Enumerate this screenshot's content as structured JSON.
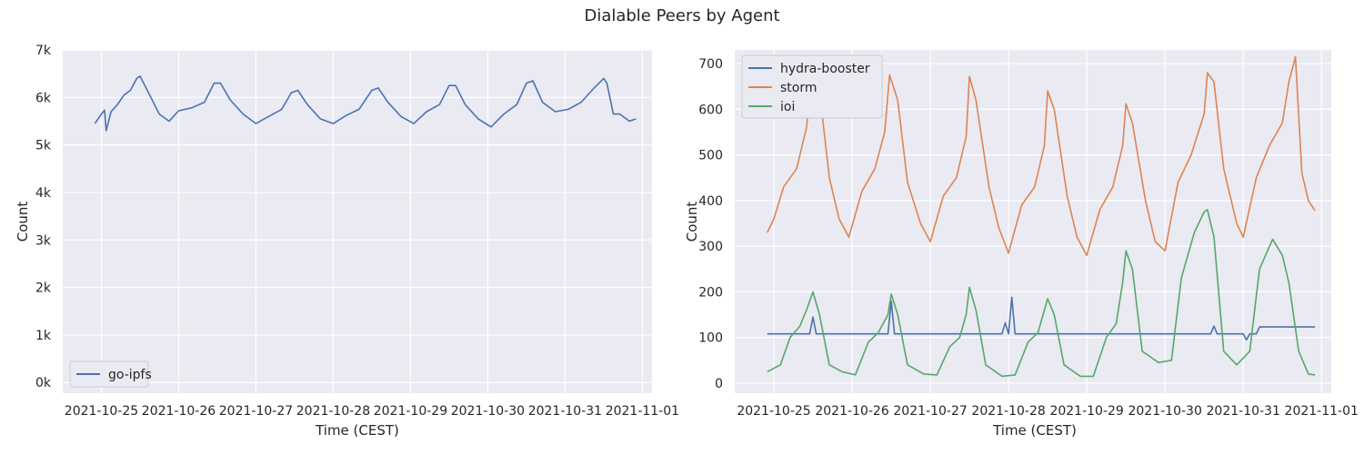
{
  "figure": {
    "title": "Dialable Peers by Agent"
  },
  "colors": {
    "go-ipfs": "#4c72b0",
    "hydra-booster": "#4c72b0",
    "storm": "#dd8452",
    "ioi": "#55a868",
    "axes_bg": "#eaeaf2",
    "grid": "#ffffff"
  },
  "chart_data": [
    {
      "type": "line",
      "xlabel": "Time (CEST)",
      "ylabel": "Count",
      "ylim": [
        0,
        7000
      ],
      "y_ticks": [
        0,
        1000,
        2000,
        3000,
        4000,
        5000,
        6000,
        7000
      ],
      "y_tick_labels": [
        "0k",
        "1k",
        "2k",
        "3k",
        "4k",
        "5k",
        "6k",
        "7k"
      ],
      "x_tick_labels": [
        "2021-10-25",
        "2021-10-26",
        "2021-10-27",
        "2021-10-28",
        "2021-10-29",
        "2021-10-30",
        "2021-10-31",
        "2021-11-01"
      ],
      "grid": true,
      "legend_position": "lower-left",
      "series": [
        {
          "name": "go-ipfs",
          "color": "#4c72b0",
          "x": [
            "2021-10-24 22:00",
            "2021-10-25 00:00",
            "2021-10-25 01:00",
            "2021-10-25 01:30",
            "2021-10-25 03:00",
            "2021-10-25 05:00",
            "2021-10-25 07:00",
            "2021-10-25 09:00",
            "2021-10-25 11:00",
            "2021-10-25 12:00",
            "2021-10-25 15:00",
            "2021-10-25 18:00",
            "2021-10-25 21:00",
            "2021-10-26 00:00",
            "2021-10-26 04:00",
            "2021-10-26 08:00",
            "2021-10-26 11:00",
            "2021-10-26 13:00",
            "2021-10-26 16:00",
            "2021-10-26 20:00",
            "2021-10-27 00:00",
            "2021-10-27 04:00",
            "2021-10-27 08:00",
            "2021-10-27 11:00",
            "2021-10-27 13:00",
            "2021-10-27 16:00",
            "2021-10-27 20:00",
            "2021-10-28 00:00",
            "2021-10-28 04:00",
            "2021-10-28 08:00",
            "2021-10-28 12:00",
            "2021-10-28 14:00",
            "2021-10-28 17:00",
            "2021-10-28 21:00",
            "2021-10-29 01:00",
            "2021-10-29 05:00",
            "2021-10-29 09:00",
            "2021-10-29 12:00",
            "2021-10-29 14:00",
            "2021-10-29 17:00",
            "2021-10-29 21:00",
            "2021-10-30 01:00",
            "2021-10-30 05:00",
            "2021-10-30 09:00",
            "2021-10-30 12:00",
            "2021-10-30 14:00",
            "2021-10-30 17:00",
            "2021-10-30 21:00",
            "2021-10-31 01:00",
            "2021-10-31 05:00",
            "2021-10-31 09:00",
            "2021-10-31 12:00",
            "2021-10-31 13:00",
            "2021-10-31 15:00",
            "2021-10-31 17:00",
            "2021-10-31 20:00",
            "2021-10-31 22:00"
          ],
          "y": [
            5450,
            5650,
            5730,
            5300,
            5700,
            5850,
            6050,
            6150,
            6400,
            6450,
            6050,
            5650,
            5500,
            5720,
            5780,
            5900,
            6300,
            6300,
            5950,
            5650,
            5450,
            5600,
            5750,
            6100,
            6150,
            5850,
            5550,
            5450,
            5620,
            5750,
            6150,
            6200,
            5900,
            5600,
            5450,
            5700,
            5850,
            6250,
            6250,
            5850,
            5550,
            5380,
            5650,
            5850,
            6300,
            6350,
            5900,
            5700,
            5750,
            5900,
            6200,
            6400,
            6300,
            5650,
            5650,
            5500,
            5550
          ]
        }
      ]
    },
    {
      "type": "line",
      "xlabel": "Time (CEST)",
      "ylabel": "Count",
      "ylim": [
        0,
        720
      ],
      "y_ticks": [
        0,
        100,
        200,
        300,
        400,
        500,
        600,
        700
      ],
      "y_tick_labels": [
        "0",
        "100",
        "200",
        "300",
        "400",
        "500",
        "600",
        "700"
      ],
      "x_tick_labels": [
        "2021-10-25",
        "2021-10-26",
        "2021-10-27",
        "2021-10-28",
        "2021-10-29",
        "2021-10-30",
        "2021-10-31",
        "2021-11-01"
      ],
      "grid": true,
      "legend_position": "upper-left",
      "series": [
        {
          "name": "hydra-booster",
          "color": "#4c72b0",
          "x": [
            "2021-10-24 22:00",
            "2021-10-25 11:00",
            "2021-10-25 12:00",
            "2021-10-25 13:00",
            "2021-10-26 11:00",
            "2021-10-26 12:00",
            "2021-10-26 13:00",
            "2021-10-27 22:00",
            "2021-10-27 23:00",
            "2021-10-28 00:00",
            "2021-10-28 01:00",
            "2021-10-28 02:00",
            "2021-10-28 03:00",
            "2021-10-30 14:00",
            "2021-10-30 15:00",
            "2021-10-30 16:00",
            "2021-10-31 00:00",
            "2021-10-31 01:00",
            "2021-10-31 02:00",
            "2021-10-31 04:00",
            "2021-10-31 05:00",
            "2021-10-31 22:00"
          ],
          "y": [
            108,
            108,
            145,
            108,
            108,
            180,
            108,
            108,
            132,
            108,
            188,
            108,
            108,
            108,
            125,
            108,
            108,
            95,
            108,
            108,
            123,
            123
          ]
        },
        {
          "name": "storm",
          "color": "#dd8452",
          "x": [
            "2021-10-24 22:00",
            "2021-10-25 00:00",
            "2021-10-25 03:00",
            "2021-10-25 07:00",
            "2021-10-25 10:00",
            "2021-10-25 12:00",
            "2021-10-25 14:00",
            "2021-10-25 17:00",
            "2021-10-25 20:00",
            "2021-10-25 23:00",
            "2021-10-26 03:00",
            "2021-10-26 07:00",
            "2021-10-26 10:00",
            "2021-10-26 11:30",
            "2021-10-26 14:00",
            "2021-10-26 17:00",
            "2021-10-26 21:00",
            "2021-10-27 00:00",
            "2021-10-27 04:00",
            "2021-10-27 08:00",
            "2021-10-27 11:00",
            "2021-10-27 12:00",
            "2021-10-27 14:00",
            "2021-10-27 18:00",
            "2021-10-27 21:00",
            "2021-10-28 00:00",
            "2021-10-28 04:00",
            "2021-10-28 08:00",
            "2021-10-28 11:00",
            "2021-10-28 12:00",
            "2021-10-28 14:00",
            "2021-10-28 18:00",
            "2021-10-28 21:00",
            "2021-10-29 00:00",
            "2021-10-29 04:00",
            "2021-10-29 08:00",
            "2021-10-29 11:00",
            "2021-10-29 12:00",
            "2021-10-29 14:00",
            "2021-10-29 18:00",
            "2021-10-29 21:00",
            "2021-10-30 00:00",
            "2021-10-30 04:00",
            "2021-10-30 08:00",
            "2021-10-30 12:00",
            "2021-10-30 13:00",
            "2021-10-30 15:00",
            "2021-10-30 18:00",
            "2021-10-30 22:00",
            "2021-10-31 00:00",
            "2021-10-31 04:00",
            "2021-10-31 08:00",
            "2021-10-31 12:00",
            "2021-10-31 14:00",
            "2021-10-31 16:00",
            "2021-10-31 18:00",
            "2021-10-31 20:00",
            "2021-10-31 22:00"
          ],
          "y": [
            330,
            360,
            430,
            470,
            560,
            690,
            640,
            450,
            360,
            320,
            420,
            470,
            550,
            675,
            620,
            440,
            350,
            310,
            410,
            450,
            540,
            672,
            620,
            430,
            340,
            285,
            390,
            430,
            520,
            640,
            600,
            410,
            320,
            280,
            380,
            430,
            520,
            612,
            570,
            400,
            310,
            290,
            440,
            500,
            590,
            680,
            660,
            470,
            350,
            320,
            450,
            520,
            570,
            660,
            715,
            460,
            400,
            378
          ]
        },
        {
          "name": "ioi",
          "color": "#55a868",
          "x": [
            "2021-10-24 22:00",
            "2021-10-25 02:00",
            "2021-10-25 05:00",
            "2021-10-25 08:00",
            "2021-10-25 10:00",
            "2021-10-25 12:00",
            "2021-10-25 14:00",
            "2021-10-25 17:00",
            "2021-10-25 21:00",
            "2021-10-26 01:00",
            "2021-10-26 05:00",
            "2021-10-26 08:00",
            "2021-10-26 11:00",
            "2021-10-26 12:00",
            "2021-10-26 14:00",
            "2021-10-26 17:00",
            "2021-10-26 22:00",
            "2021-10-27 02:00",
            "2021-10-27 06:00",
            "2021-10-27 09:00",
            "2021-10-27 11:00",
            "2021-10-27 12:00",
            "2021-10-27 14:00",
            "2021-10-27 17:00",
            "2021-10-27 22:00",
            "2021-10-28 02:00",
            "2021-10-28 06:00",
            "2021-10-28 09:00",
            "2021-10-28 11:00",
            "2021-10-28 12:00",
            "2021-10-28 14:00",
            "2021-10-28 17:00",
            "2021-10-28 22:00",
            "2021-10-29 02:00",
            "2021-10-29 06:00",
            "2021-10-29 09:00",
            "2021-10-29 11:00",
            "2021-10-29 12:00",
            "2021-10-29 14:00",
            "2021-10-29 17:00",
            "2021-10-29 22:00",
            "2021-10-30 02:00",
            "2021-10-30 05:00",
            "2021-10-30 09:00",
            "2021-10-30 12:00",
            "2021-10-30 13:00",
            "2021-10-30 15:00",
            "2021-10-30 18:00",
            "2021-10-30 22:00",
            "2021-10-31 02:00",
            "2021-10-31 05:00",
            "2021-10-31 09:00",
            "2021-10-31 12:00",
            "2021-10-31 14:00",
            "2021-10-31 17:00",
            "2021-10-31 20:00",
            "2021-10-31 22:00"
          ],
          "y": [
            25,
            40,
            100,
            125,
            160,
            200,
            150,
            40,
            25,
            18,
            90,
            110,
            150,
            195,
            150,
            40,
            20,
            18,
            80,
            100,
            150,
            210,
            160,
            40,
            15,
            18,
            90,
            110,
            160,
            185,
            150,
            40,
            15,
            15,
            100,
            130,
            220,
            290,
            250,
            70,
            45,
            50,
            230,
            330,
            375,
            380,
            320,
            70,
            40,
            70,
            250,
            315,
            280,
            220,
            70,
            20,
            18
          ]
        }
      ]
    }
  ]
}
